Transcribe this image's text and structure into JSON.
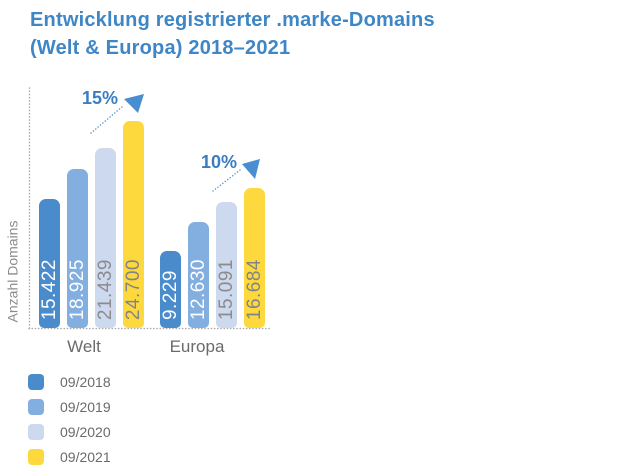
{
  "title": {
    "line1": "Entwicklung registrierter .marke-Domains",
    "line2": "(Welt & Europa) 2018–2021"
  },
  "chart_data": {
    "type": "bar",
    "title": "Entwicklung registrierter .marke-Domains (Welt & Europa) 2018–2021",
    "ylabel": "Anzahl Domains",
    "xlabel": "",
    "categories": [
      "Welt",
      "Europa"
    ],
    "series": [
      {
        "name": "09/2018",
        "color": "#4A8CCB",
        "label_color": "#FFFFFF",
        "values": [
          15422,
          9229
        ]
      },
      {
        "name": "09/2019",
        "color": "#82AFDF",
        "label_color": "#FFFFFF",
        "values": [
          18925,
          12630
        ]
      },
      {
        "name": "09/2020",
        "color": "#CDD9EE",
        "label_color": "#8B8B8B",
        "values": [
          21439,
          15091
        ]
      },
      {
        "name": "09/2021",
        "color": "#FDD93E",
        "label_color": "#848484",
        "values": [
          24700,
          16684
        ]
      }
    ],
    "value_labels": [
      [
        "15.422",
        "18.925",
        "21.439",
        "24.700"
      ],
      [
        "9.229",
        "12.630",
        "15.091",
        "16.684"
      ]
    ],
    "annotations": [
      {
        "text": "15%",
        "category": "Welt"
      },
      {
        "text": "10%",
        "category": "Europa"
      }
    ],
    "ylim": [
      0,
      24700
    ],
    "grid": false,
    "legend_position": "bottom-left"
  },
  "colors": {
    "title": "#3E86C6",
    "annotation": "#3A7EC1",
    "arrow": "#4A8ED2",
    "axis_dots": "#A8A8A8",
    "text_gray": "#6B6B6B",
    "ylabel_gray": "#8C8C8C"
  }
}
